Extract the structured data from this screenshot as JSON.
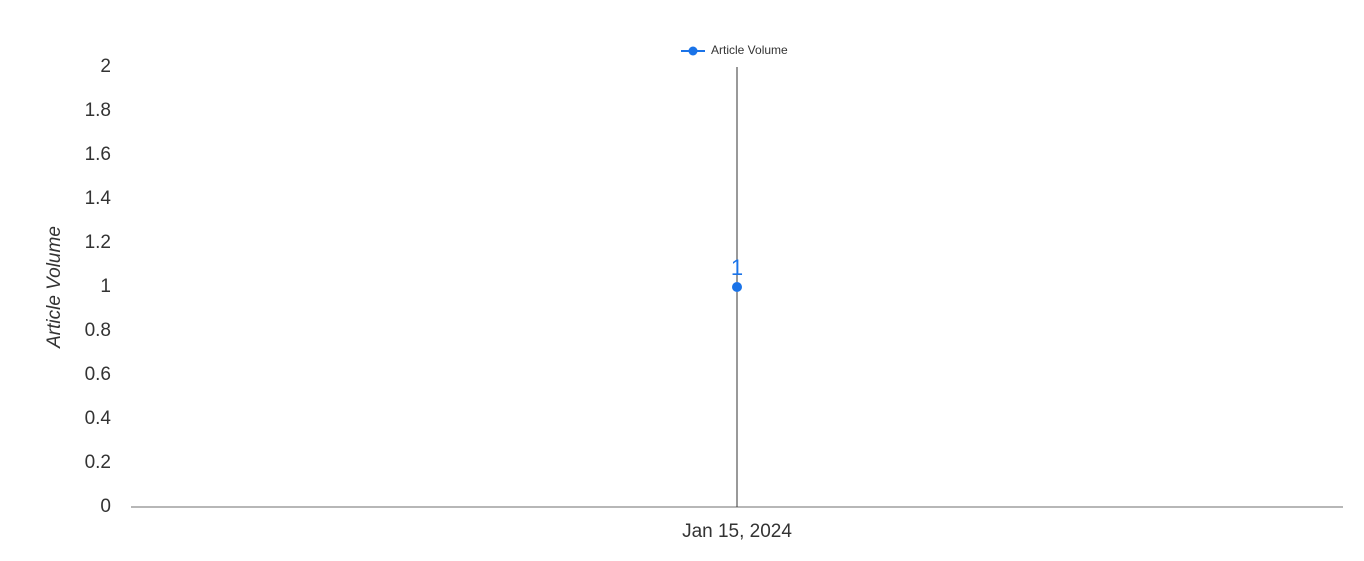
{
  "chart_data": {
    "type": "line",
    "title": "",
    "xlabel": "",
    "ylabel": "Article Volume",
    "x": [
      "Jan 15, 2024"
    ],
    "series": [
      {
        "name": "Article Volume",
        "values": [
          1
        ],
        "color": "#1a73e8"
      }
    ],
    "ylim": [
      0,
      2
    ],
    "yticks": [
      0,
      0.2,
      0.4,
      0.6,
      0.8,
      1,
      1.2,
      1.4,
      1.6,
      1.8,
      2
    ],
    "data_labels": true,
    "legend": "top",
    "grid": false
  }
}
